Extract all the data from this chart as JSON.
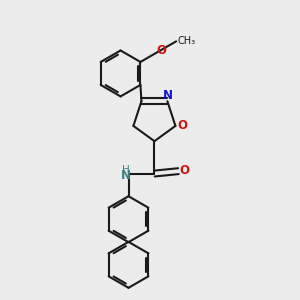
{
  "background_color": "#ececec",
  "bond_color": "#1a1a1a",
  "nitrogen_color": "#1414cc",
  "oxygen_color": "#cc1414",
  "nh_color": "#3a8080",
  "line_width": 1.5,
  "figsize": [
    3.0,
    3.0
  ],
  "dpi": 100,
  "xlim": [
    2.0,
    8.0
  ],
  "ylim": [
    0.5,
    10.5
  ]
}
